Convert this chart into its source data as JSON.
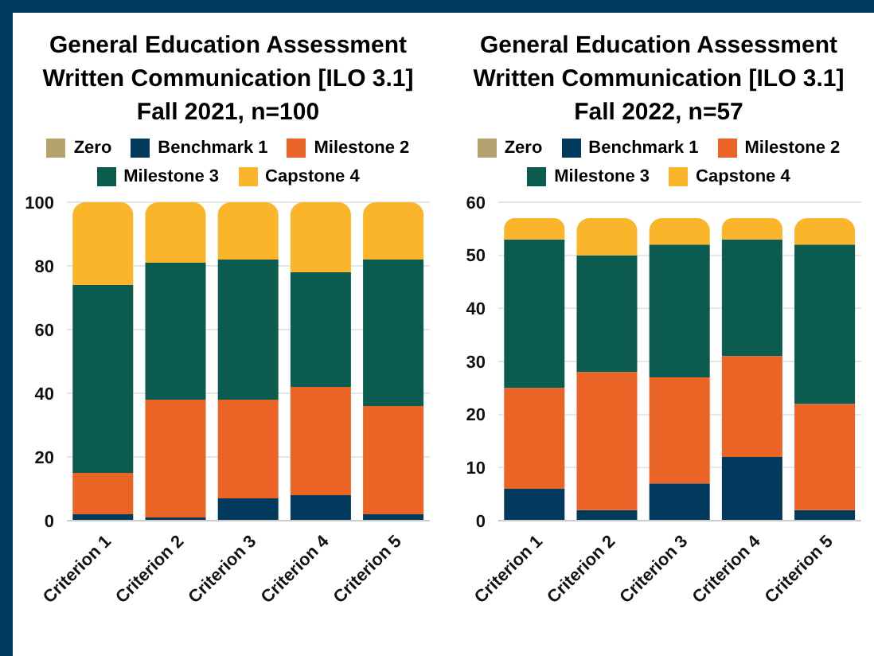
{
  "chart_data": [
    {
      "type": "bar",
      "title": "General Education Assessment\nWritten Communication [ILO 3.1]\nFall 2021, n=100",
      "categories": [
        "Criterion 1",
        "Criterion 2",
        "Criterion 3",
        "Criterion 4",
        "Criterion 5"
      ],
      "stacked": true,
      "series": [
        {
          "name": "Zero",
          "color": "#b5a36f",
          "values": [
            0,
            0,
            0,
            0,
            0
          ]
        },
        {
          "name": "Benchmark 1",
          "color": "#013a5c",
          "values": [
            2,
            1,
            7,
            8,
            2
          ]
        },
        {
          "name": "Milestone 2",
          "color": "#ea6425",
          "values": [
            13,
            37,
            31,
            34,
            34
          ]
        },
        {
          "name": "Milestone 3",
          "color": "#0b5b4f",
          "values": [
            59,
            43,
            44,
            36,
            46
          ]
        },
        {
          "name": "Capstone 4",
          "color": "#fbb52a",
          "values": [
            26,
            19,
            18,
            22,
            18
          ]
        }
      ],
      "ylim": [
        0,
        100
      ],
      "yticks": [
        0,
        20,
        40,
        60,
        80,
        100
      ],
      "grid": "y",
      "legend": "top"
    },
    {
      "type": "bar",
      "title": "General Education Assessment\nWritten Communication [ILO 3.1]\nFall 2022, n=57",
      "categories": [
        "Criterion 1",
        "Criterion 2",
        "Criterion 3",
        "Criterion 4",
        "Criterion 5"
      ],
      "stacked": true,
      "series": [
        {
          "name": "Zero",
          "color": "#b5a36f",
          "values": [
            0,
            0,
            0,
            0,
            0
          ]
        },
        {
          "name": "Benchmark 1",
          "color": "#013a5c",
          "values": [
            6,
            2,
            7,
            12,
            2
          ]
        },
        {
          "name": "Milestone 2",
          "color": "#ea6425",
          "values": [
            19,
            26,
            20,
            19,
            20
          ]
        },
        {
          "name": "Milestone 3",
          "color": "#0b5b4f",
          "values": [
            28,
            22,
            25,
            22,
            30
          ]
        },
        {
          "name": "Capstone 4",
          "color": "#fbb52a",
          "values": [
            4,
            7,
            5,
            4,
            5
          ]
        }
      ],
      "ylim": [
        0,
        60
      ],
      "yticks": [
        0,
        10,
        20,
        30,
        40,
        50,
        60
      ],
      "grid": "y",
      "legend": "top"
    }
  ]
}
